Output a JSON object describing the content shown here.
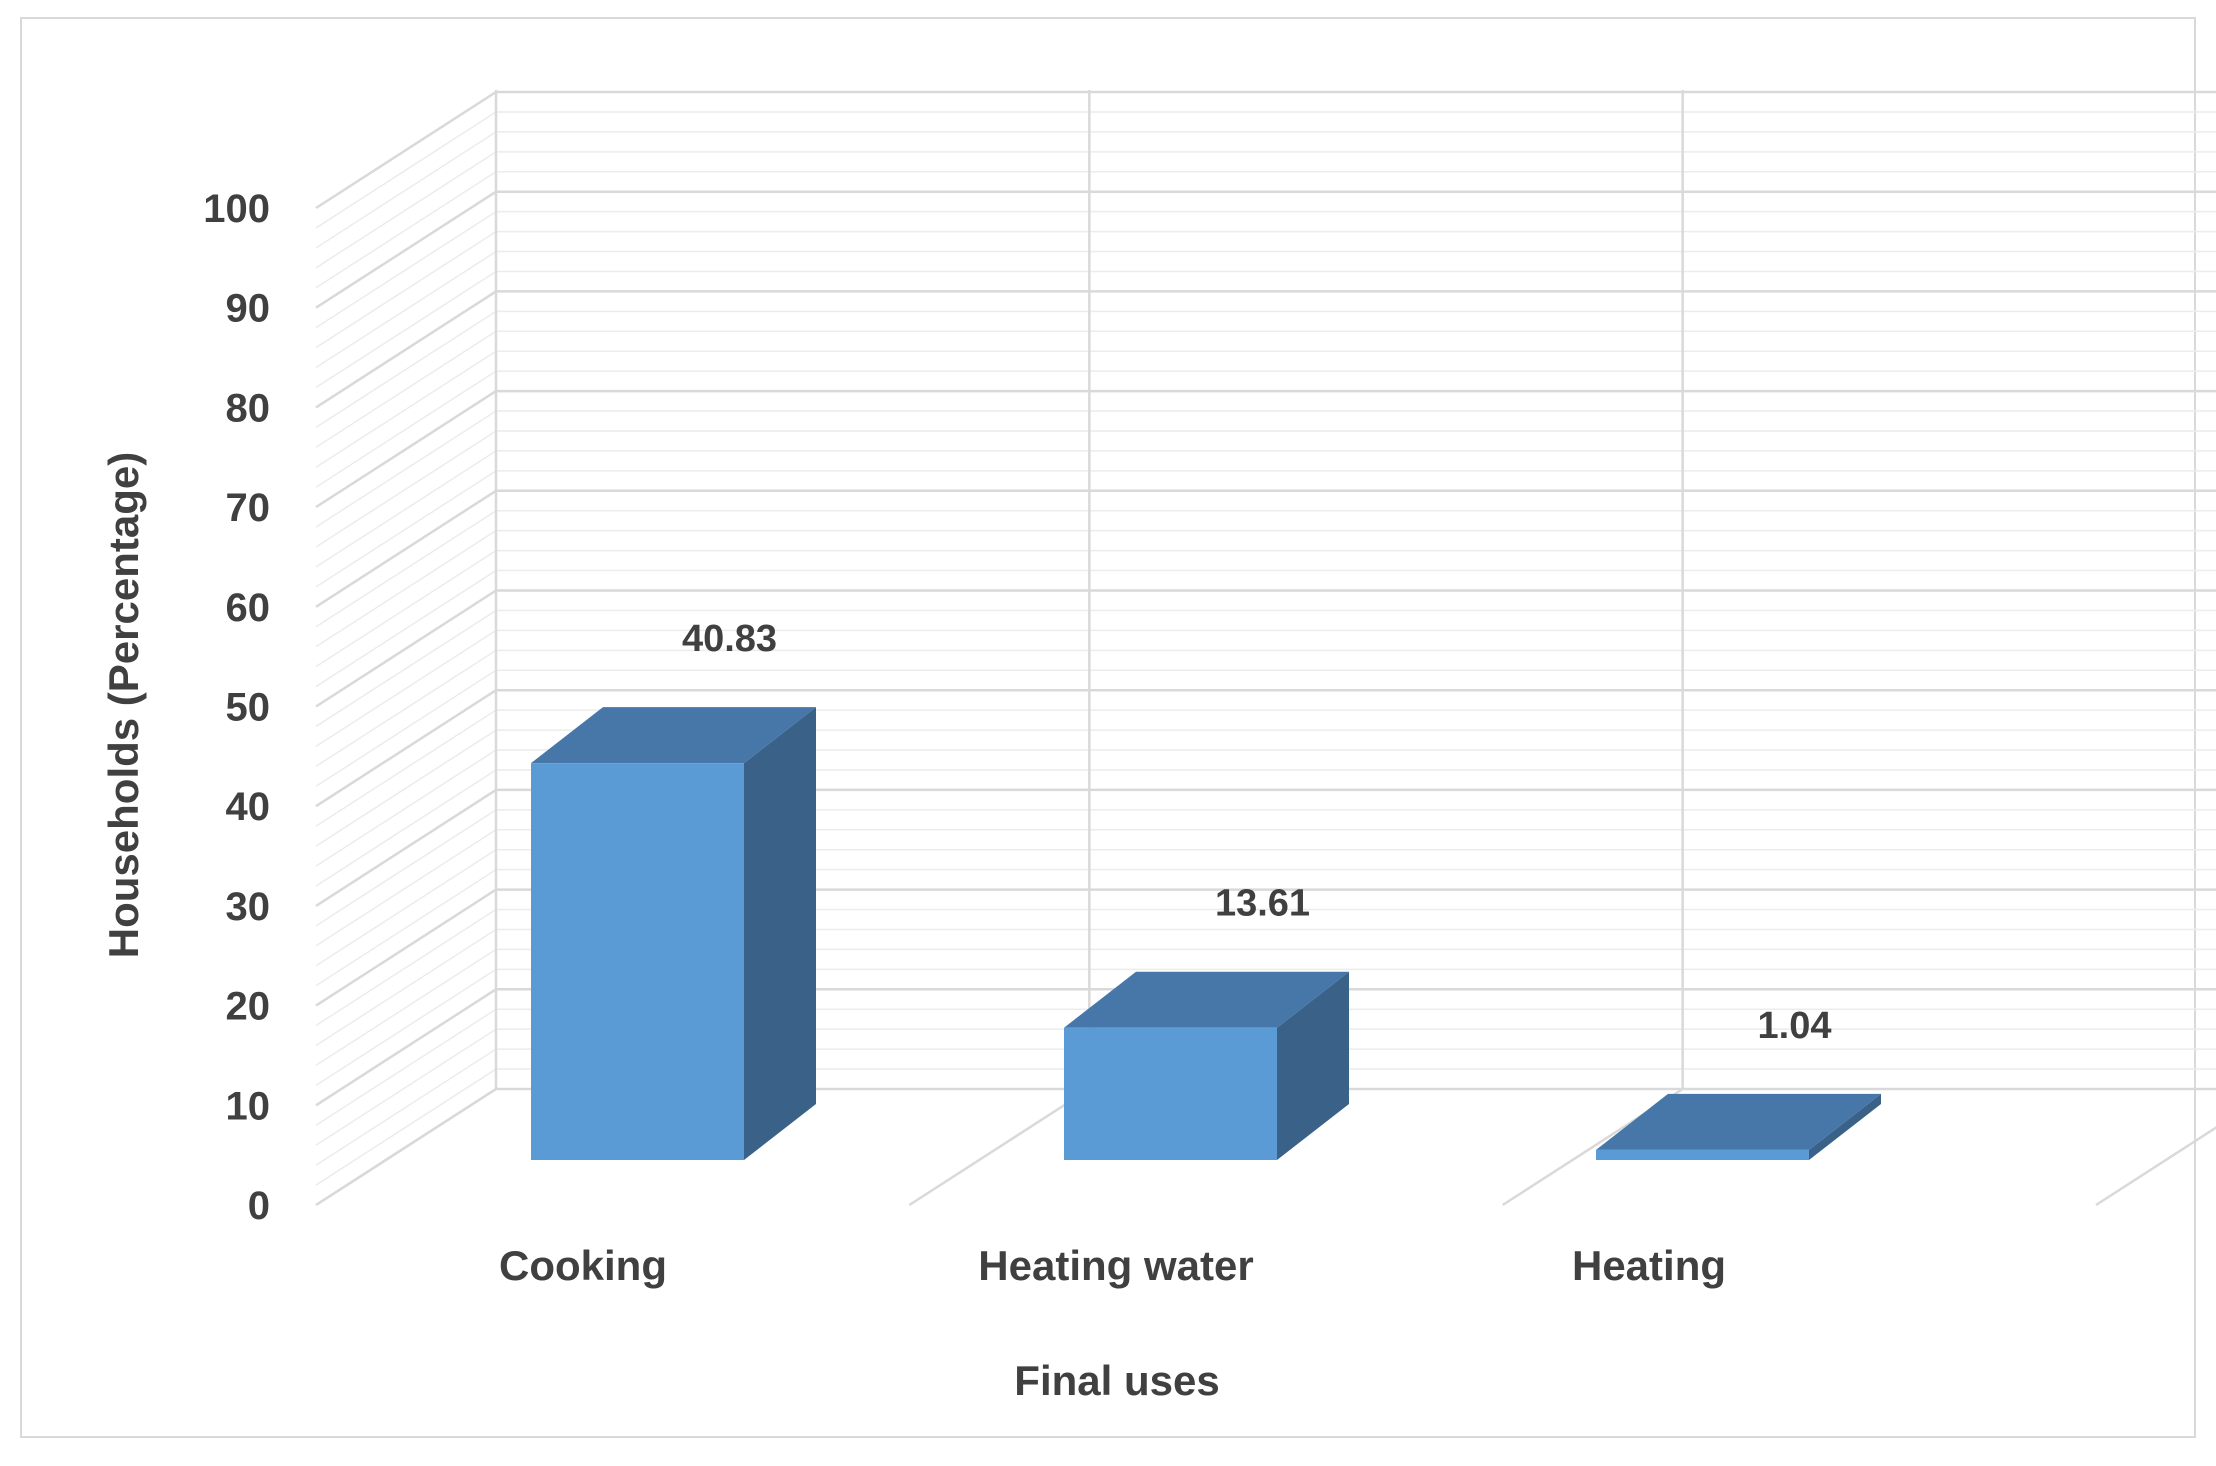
{
  "chart_data": {
    "type": "bar",
    "style": "3d-column",
    "categories": [
      "Cooking",
      "Heating water",
      "Heating"
    ],
    "values": [
      40.83,
      13.61,
      1.04
    ],
    "data_labels": [
      "40.83",
      "13.61",
      "1.04"
    ],
    "title": "",
    "xlabel": "Final uses",
    "ylabel": "Households (Percentage)",
    "ylim": [
      0,
      100
    ],
    "yticks": [
      0,
      10,
      20,
      30,
      40,
      50,
      60,
      70,
      80,
      90,
      100
    ],
    "ytick_labels": [
      "0",
      "10",
      "20",
      "30",
      "40",
      "50",
      "60",
      "70",
      "80",
      "90",
      "100"
    ],
    "grid": true,
    "legend": "none",
    "colors": {
      "bar_front": "#5b9bd5",
      "bar_top": "#4677a8",
      "bar_side": "#3a6289",
      "grid_major": "#d9d9d9",
      "grid_minor": "#ececec",
      "text": "#404040"
    }
  }
}
